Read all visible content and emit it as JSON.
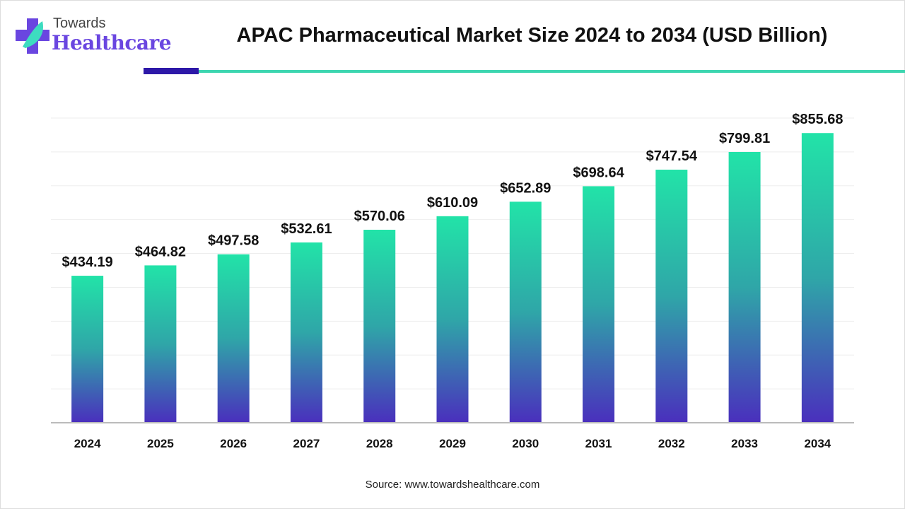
{
  "brand": {
    "line1": "Towards",
    "line2": "Healthcare"
  },
  "source": "Source: www.towardshealthcare.com",
  "colors": {
    "bar_top": "#22e3a8",
    "bar_bottom": "#4a2fbd",
    "accent_dark": "#2d18a8",
    "accent_teal": "#3dd6b0"
  },
  "chart_data": {
    "type": "bar",
    "title": "APAC Pharmaceutical Market Size 2024 to 2034 (USD Billion)",
    "categories": [
      "2024",
      "2025",
      "2026",
      "2027",
      "2028",
      "2029",
      "2030",
      "2031",
      "2032",
      "2033",
      "2034"
    ],
    "values": [
      434.19,
      464.82,
      497.58,
      532.61,
      570.06,
      610.09,
      652.89,
      698.64,
      747.54,
      799.81,
      855.68
    ],
    "labels": [
      "$434.19",
      "$464.82",
      "$497.58",
      "$532.61",
      "$570.06",
      "$610.09",
      "$652.89",
      "$698.64",
      "$747.54",
      "$799.81",
      "$855.68"
    ],
    "xlabel": "",
    "ylabel": "",
    "ylim": [
      0,
      900
    ],
    "grid": true
  }
}
